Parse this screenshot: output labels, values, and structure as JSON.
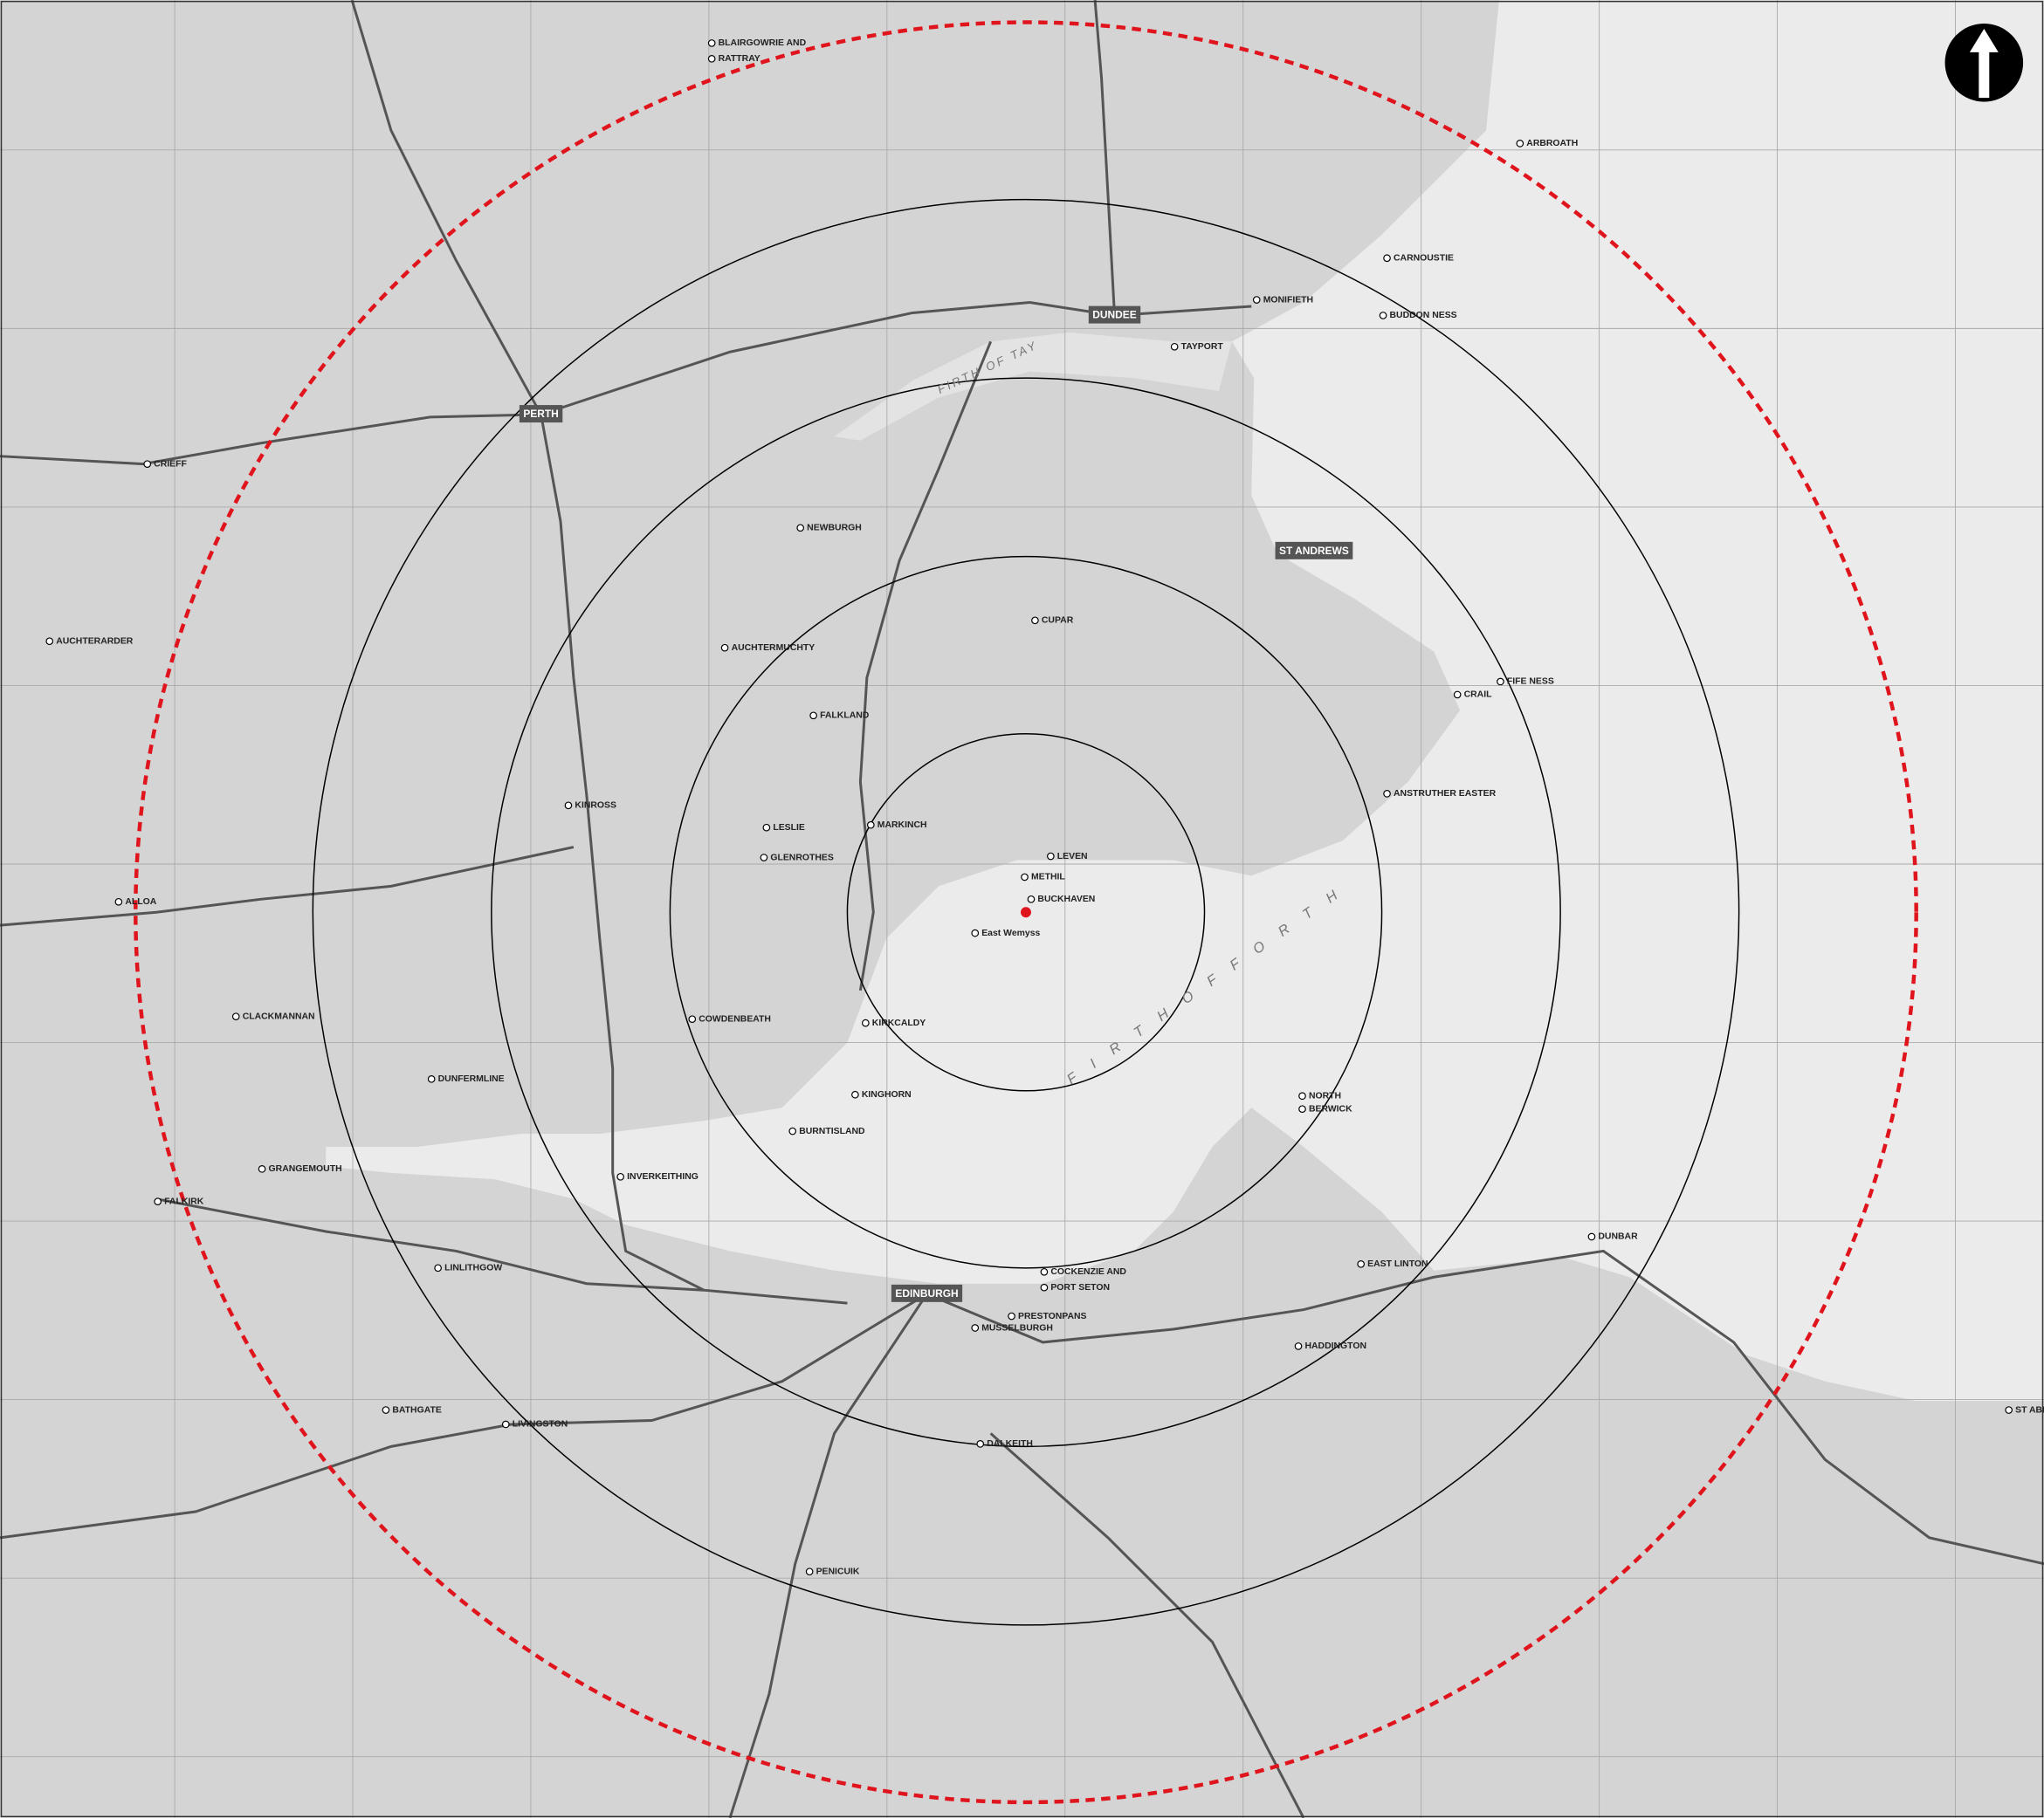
{
  "places": [
    "PERTH",
    "DUNDEE",
    "ST ANDREWS",
    "EDINBURGH",
    "CUPAR",
    "CRAIL",
    "ANSTRUTHER EASTER",
    "LEVEN",
    "METHIL",
    "BUCKHAVEN",
    "East Wemyss",
    "GLENROTHES",
    "LESLIE",
    "MARKINCH",
    "KIRKCALDY",
    "KINGHORN",
    "BURNTISLAND",
    "COWDENBEATH",
    "DUNFERMLINE",
    "INVERKEITHING",
    "KINROSS",
    "AUCHTERMUCHTY",
    "AUCHTERARDER",
    "CRIEFF",
    "ALLOA",
    "CLACKMANNAN",
    "FALKIRK",
    "GRANGEMOUTH",
    "LINLITHGOW",
    "LIVINGSTON",
    "BATHGATE",
    "MUSSELBURGH",
    "PRESTONPANS",
    "COCKENZIE AND",
    "PORT SETON",
    "NORTH",
    "BERWICK",
    "HADDINGTON",
    "EAST LINTON",
    "DUNBAR",
    "PENICUIK",
    "DALKEITH",
    "CARNOUSTIE",
    "MONIFIETH",
    "ARBROATH",
    "BLAIRGOWRIE AND",
    "RATTRAY",
    "NEWBURGH",
    "FALKLAND",
    "BUDDON NESS",
    "FIFE NESS",
    "TAYPORT",
    "ST ABB'S HEAD"
  ],
  "water": [
    "FIRTH OF TAY",
    "F I R T H    O F    F O R T H"
  ]
}
